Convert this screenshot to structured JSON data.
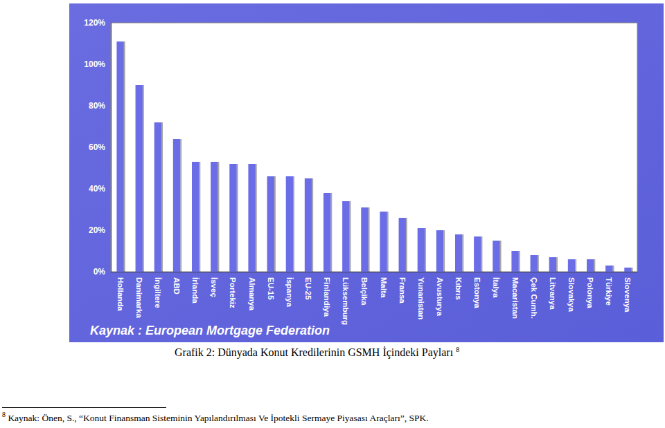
{
  "chart_data": {
    "type": "bar",
    "categories": [
      "Hollanda",
      "Danimarka",
      "İngiltere",
      "ABD",
      "İrlanda",
      "İsveç",
      "Portekiz",
      "Almanya",
      "EU-15",
      "İspanya",
      "EU-25",
      "Finlandiya",
      "Lüksemburg",
      "Belçika",
      "Malta",
      "Fransa",
      "Yunanistan",
      "Avusturya",
      "Kıbrıs",
      "Estonya",
      "İtalya",
      "Macaristan",
      "Çek Cumh.",
      "Litvanya",
      "Slovakya",
      "Polonya",
      "Türkiye",
      "Slovenya"
    ],
    "values": [
      111,
      90,
      72,
      64,
      53,
      53,
      52,
      52,
      46,
      46,
      45,
      38,
      34,
      31,
      29,
      26,
      21,
      20,
      18,
      17,
      15,
      10,
      8,
      7,
      6,
      6,
      3,
      2
    ],
    "color": "#6a6de6",
    "ylim": [
      0,
      120
    ],
    "yticks": [
      {
        "value": 0,
        "label": "0%"
      },
      {
        "value": 20,
        "label": "20%"
      },
      {
        "value": 40,
        "label": "40%"
      },
      {
        "value": 60,
        "label": "60%"
      },
      {
        "value": 80,
        "label": "80%"
      },
      {
        "value": 100,
        "label": "100%"
      },
      {
        "value": 120,
        "label": "120%"
      }
    ],
    "grid": false,
    "annotations": [
      "Kaynak : European Mortgage Federation"
    ]
  },
  "caption": {
    "text": "Grafik 2: Dünyada Konut Kredilerinin GSMH İçindeki Payları",
    "note_mark": "8"
  },
  "footnote": {
    "mark": "8",
    "text": "Kaynak: Önen, S., “Konut Finansman Sisteminin Yapılandırılması Ve İpotekli Sermaye Piyasası Araçları”, SPK."
  }
}
